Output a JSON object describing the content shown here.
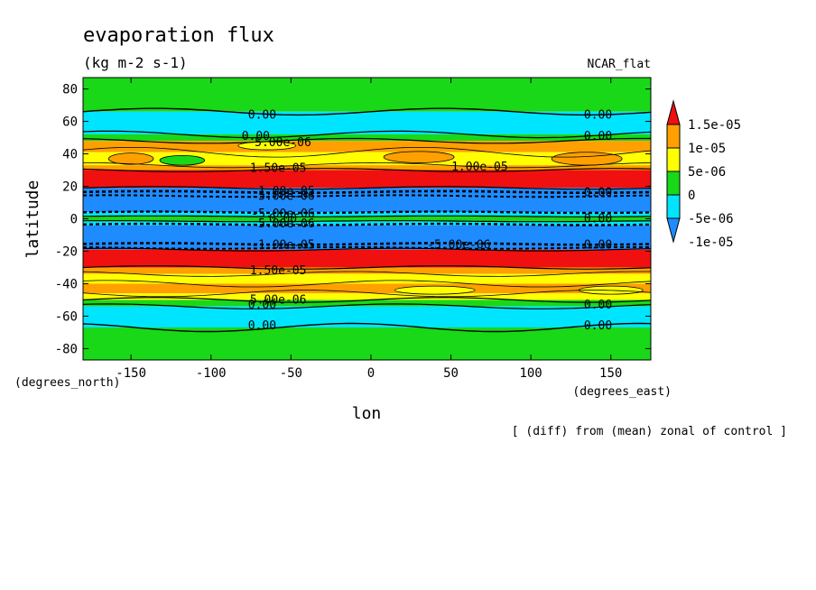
{
  "chart_data": {
    "type": "heatmap",
    "title": "evaporation flux",
    "units": "(kg m-2 s-1)",
    "model_label": "NCAR_flat",
    "xlabel": "lon",
    "ylabel": "latitude",
    "x_unit_label": "(degrees_east)",
    "y_unit_label": "(degrees_north)",
    "footnote": "[ (diff) from (mean) zonal of control ]",
    "xlim": [
      -180,
      175
    ],
    "ylim": [
      -87,
      87
    ],
    "xticks": [
      -150,
      -100,
      -50,
      0,
      50,
      100,
      150
    ],
    "yticks": [
      -80,
      -60,
      -40,
      -20,
      0,
      20,
      40,
      60,
      80
    ],
    "xtick_labels": [
      "-150",
      "-100",
      "-50",
      "0",
      "50",
      "100",
      "150"
    ],
    "ytick_labels": [
      "-80",
      "-60",
      "-40",
      "-20",
      "0",
      "20",
      "40",
      "60",
      "80"
    ],
    "colorbar": {
      "labels": [
        "1.5e-05",
        "1e-05",
        "5e-06",
        "0",
        "-5e-06",
        "-1e-05"
      ],
      "levels": [
        -1e-05,
        -5e-06,
        0,
        5e-06,
        1e-05,
        1.5e-05
      ],
      "colors": [
        "#1e8cff",
        "#00e5ff",
        "#18d818",
        "#ffff00",
        "#ffa000",
        "#f01010"
      ]
    },
    "bands": [
      {
        "lat_min": 66,
        "lat_max": 87,
        "value_class": "0 to 5e-06",
        "color": "#18d818"
      },
      {
        "lat_min": 52,
        "lat_max": 66,
        "value_class": "-5e-06 to 0",
        "color": "#00e5ff"
      },
      {
        "lat_min": 48,
        "lat_max": 52,
        "value_class": "0 to 5e-06",
        "color": "#18d818"
      },
      {
        "lat_min": 41,
        "lat_max": 48,
        "value_class": "1e-05 to 1.5e-05",
        "color": "#ffa000"
      },
      {
        "lat_min": 33,
        "lat_max": 41,
        "value_class": "5e-06 to 1e-05",
        "color": "#ffff00"
      },
      {
        "lat_min": 30,
        "lat_max": 33,
        "value_class": "1e-05 to 1.5e-05",
        "color": "#ffa000"
      },
      {
        "lat_min": 19,
        "lat_max": 30,
        "value_class": ">1.5e-05",
        "color": "#f01010"
      },
      {
        "lat_min": 15,
        "lat_max": 19,
        "value_class": "<-1e-05",
        "color": "#1e8cff"
      },
      {
        "lat_min": 4,
        "lat_max": 15,
        "value_class": "-1e-05 to -5e-06",
        "color": "#1e8cff"
      },
      {
        "lat_min": 1.5,
        "lat_max": 4,
        "value_class": "-5e-06 to 0",
        "color": "#00e5ff"
      },
      {
        "lat_min": -1.5,
        "lat_max": 1.5,
        "value_class": "0 to 5e-06",
        "color": "#18d818"
      },
      {
        "lat_min": -4,
        "lat_max": -1.5,
        "value_class": "-5e-06 to 0",
        "color": "#00e5ff"
      },
      {
        "lat_min": -15,
        "lat_max": -4,
        "value_class": "-1e-05 to -5e-06",
        "color": "#1e8cff"
      },
      {
        "lat_min": -19,
        "lat_max": -15,
        "value_class": "<-1e-05",
        "color": "#1e8cff"
      },
      {
        "lat_min": -30,
        "lat_max": -19,
        "value_class": ">1.5e-05",
        "color": "#f01010"
      },
      {
        "lat_min": -34,
        "lat_max": -30,
        "value_class": "1e-05 to 1.5e-05",
        "color": "#ffa000"
      },
      {
        "lat_min": -40,
        "lat_max": -34,
        "value_class": "5e-06 to 1e-05",
        "color": "#ffff00"
      },
      {
        "lat_min": -46,
        "lat_max": -40,
        "value_class": "1e-05 to 1.5e-05",
        "color": "#ffa000"
      },
      {
        "lat_min": -50,
        "lat_max": -46,
        "value_class": "5e-06 to 1e-05",
        "color": "#ffff00"
      },
      {
        "lat_min": -54,
        "lat_max": -50,
        "value_class": "0 to 5e-06",
        "color": "#18d818"
      },
      {
        "lat_min": -67,
        "lat_max": -54,
        "value_class": "-5e-06 to 0",
        "color": "#00e5ff"
      },
      {
        "lat_min": -87,
        "lat_max": -67,
        "value_class": "0 to 5e-06",
        "color": "#18d818"
      }
    ],
    "blobs": [
      {
        "lon": -118,
        "lat": 36,
        "rx": 14,
        "ry": 3,
        "color": "#18d818"
      },
      {
        "lon": -150,
        "lat": 37,
        "rx": 14,
        "ry": 3.5,
        "color": "#ffa000"
      },
      {
        "lon": 30,
        "lat": 38,
        "rx": 22,
        "ry": 3.5,
        "color": "#ffa000"
      },
      {
        "lon": 135,
        "lat": 37,
        "rx": 22,
        "ry": 4,
        "color": "#ffa000"
      },
      {
        "lon": -65,
        "lat": 45,
        "rx": 18,
        "ry": 2.5,
        "color": "#ffff00"
      },
      {
        "lon": 40,
        "lat": -44,
        "rx": 25,
        "ry": 2.5,
        "color": "#ffff00"
      },
      {
        "lon": 150,
        "lat": -44,
        "rx": 20,
        "ry": 2.5,
        "color": "#ffff00"
      }
    ],
    "contour_lines": [
      {
        "lat": 66,
        "amp": 2,
        "phase": 0,
        "dashed": false,
        "width": 1.4
      },
      {
        "lat": 52,
        "amp": 2,
        "phase": 1,
        "dashed": false,
        "width": 1.2
      },
      {
        "lat": 48,
        "amp": 1.5,
        "phase": 2,
        "dashed": false,
        "width": 1.2
      },
      {
        "lat": 41,
        "amp": 3,
        "phase": 0.5,
        "dashed": false,
        "width": 0.8
      },
      {
        "lat": 33,
        "amp": 1.5,
        "phase": 1.5,
        "dashed": false,
        "width": 0.8
      },
      {
        "lat": 30,
        "amp": 1,
        "phase": 2.5,
        "dashed": false,
        "width": 1.2
      },
      {
        "lat": 19,
        "amp": 0.8,
        "phase": 0,
        "dashed": false,
        "width": 1.2
      },
      {
        "lat": 16.5,
        "amp": 0.5,
        "phase": 0,
        "dashed": true,
        "width": 2.6
      },
      {
        "lat": 14,
        "amp": 0.5,
        "phase": 1,
        "dashed": true,
        "width": 2
      },
      {
        "lat": 4,
        "amp": 0.4,
        "phase": 0,
        "dashed": true,
        "width": 2.4
      },
      {
        "lat": 1.5,
        "amp": 0.3,
        "phase": 0,
        "dashed": false,
        "width": 1.2
      },
      {
        "lat": -1.5,
        "amp": 0.3,
        "phase": 1,
        "dashed": false,
        "width": 1.2
      },
      {
        "lat": -3.5,
        "amp": 0.4,
        "phase": 0,
        "dashed": true,
        "width": 2.4
      },
      {
        "lat": -15.5,
        "amp": 0.5,
        "phase": 0,
        "dashed": true,
        "width": 2.6
      },
      {
        "lat": -18,
        "amp": 0.5,
        "phase": 2,
        "dashed": true,
        "width": 2
      },
      {
        "lat": -19,
        "amp": 0.8,
        "phase": 1,
        "dashed": false,
        "width": 1.2
      },
      {
        "lat": -30,
        "amp": 1,
        "phase": 0,
        "dashed": false,
        "width": 1.2
      },
      {
        "lat": -34,
        "amp": 1.5,
        "phase": 2,
        "dashed": false,
        "width": 0.8
      },
      {
        "lat": -40,
        "amp": 2,
        "phase": 1,
        "dashed": false,
        "width": 0.8
      },
      {
        "lat": -46,
        "amp": 2,
        "phase": 3,
        "dashed": false,
        "width": 0.8
      },
      {
        "lat": -50,
        "amp": 1.5,
        "phase": 0,
        "dashed": false,
        "width": 1.2
      },
      {
        "lat": -54,
        "amp": 1.5,
        "phase": 1,
        "dashed": false,
        "width": 1.2
      },
      {
        "lat": -67,
        "amp": 2.5,
        "phase": 2,
        "dashed": false,
        "width": 1.4
      }
    ],
    "contour_labels": [
      {
        "lon": -68,
        "lat": 64,
        "text": "0.00"
      },
      {
        "lon": 142,
        "lat": 64,
        "text": "0.00"
      },
      {
        "lon": -72,
        "lat": 51,
        "text": "0.00"
      },
      {
        "lon": 142,
        "lat": 51,
        "text": "0.00"
      },
      {
        "lon": -55,
        "lat": 47,
        "text": "5.00e-06"
      },
      {
        "lon": -58,
        "lat": 31,
        "text": "1.50e-05"
      },
      {
        "lon": 68,
        "lat": 32,
        "text": "1.00e-05"
      },
      {
        "lon": -55,
        "lat": 17,
        "text": "-1.00e-05"
      },
      {
        "lon": -55,
        "lat": 14,
        "text": "-5.00e-06"
      },
      {
        "lon": 142,
        "lat": 16,
        "text": "0.00"
      },
      {
        "lon": -55,
        "lat": 3,
        "text": "-5.00e-06"
      },
      {
        "lon": -55,
        "lat": 0,
        "text": "0.00"
      },
      {
        "lon": 142,
        "lat": 0,
        "text": "0.00"
      },
      {
        "lon": -55,
        "lat": -3,
        "text": "-5.00e-06"
      },
      {
        "lon": -55,
        "lat": -16,
        "text": "-1.00e-05"
      },
      {
        "lon": 55,
        "lat": -16,
        "text": "-5.00e-06"
      },
      {
        "lon": 142,
        "lat": -16,
        "text": "0.00"
      },
      {
        "lon": -58,
        "lat": -32,
        "text": "1.50e-05"
      },
      {
        "lon": -58,
        "lat": -50,
        "text": "5.00e-06"
      },
      {
        "lon": -68,
        "lat": -53,
        "text": "0.00"
      },
      {
        "lon": 142,
        "lat": -53,
        "text": "0.00"
      },
      {
        "lon": -68,
        "lat": -66,
        "text": "0.00"
      },
      {
        "lon": 142,
        "lat": -66,
        "text": "0.00"
      }
    ]
  }
}
